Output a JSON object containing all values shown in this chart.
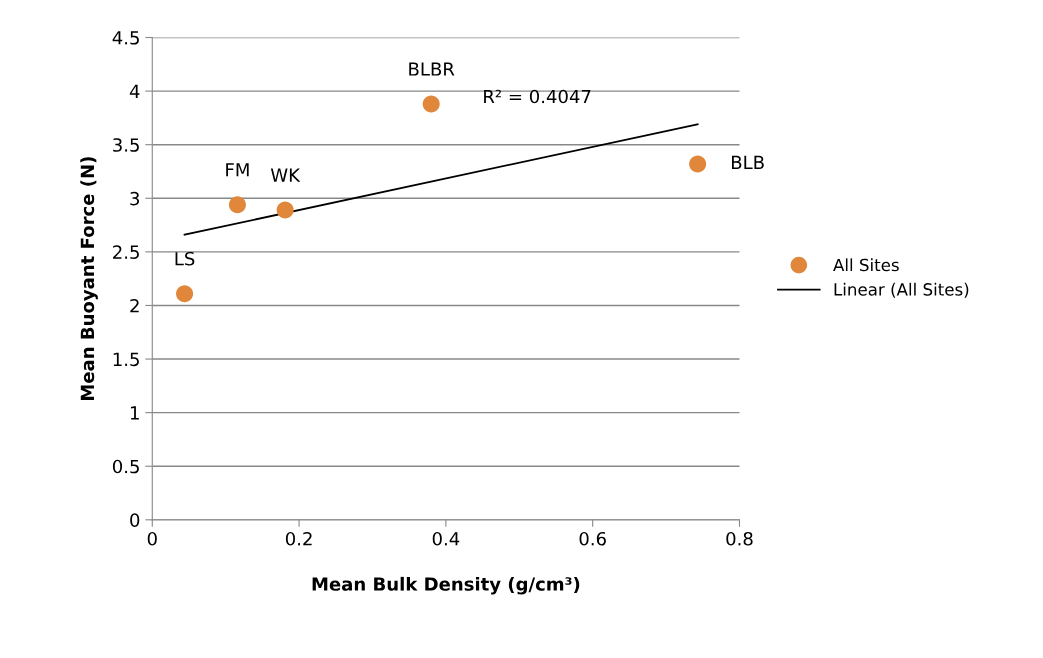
{
  "chart_data": {
    "type": "scatter",
    "xlabel": "Mean Bulk Density (g/cm³)",
    "ylabel": "Mean Buoyant Force (N)",
    "series": [
      {
        "name": "All Sites",
        "color": "#e0873c",
        "marker": "circle",
        "x": [
          0.044,
          0.116,
          0.181,
          0.38,
          0.743
        ],
        "values": [
          2.11,
          2.94,
          2.89,
          3.88,
          3.32
        ]
      },
      {
        "name": "Linear (All Sites)",
        "type": "line",
        "color": "#000000",
        "marker": "none",
        "line_style": "solid",
        "x": [
          0.044,
          0.743
        ],
        "values": [
          2.66,
          3.69
        ]
      }
    ],
    "annotations": [
      {
        "text": "LS",
        "x": 0.044,
        "y": 2.11
      },
      {
        "text": "FM",
        "x": 0.116,
        "y": 2.94
      },
      {
        "text": "WK",
        "x": 0.181,
        "y": 2.89
      },
      {
        "text": "BLBR",
        "x": 0.38,
        "y": 3.88
      },
      {
        "text": "BLB",
        "x": 0.743,
        "y": 3.32
      },
      {
        "text": "R² = 0.4047",
        "x": 0.6,
        "y": 3.52
      }
    ],
    "xlim": [
      0,
      0.8
    ],
    "xticks": [
      0,
      0.2,
      0.4,
      0.6,
      0.8
    ],
    "ylim": [
      0,
      4.5
    ],
    "yticks": [
      0,
      0.5,
      1,
      1.5,
      2,
      2.5,
      3,
      3.5,
      4,
      4.5
    ],
    "grid": "y",
    "legend": "right"
  }
}
